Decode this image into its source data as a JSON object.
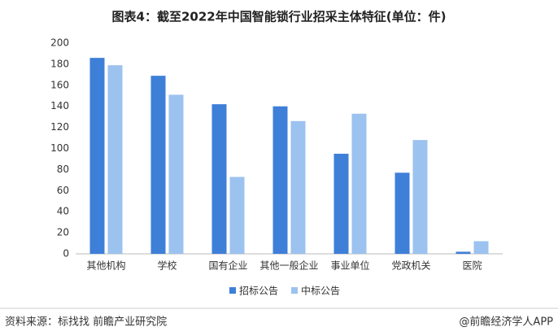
{
  "chart_data": {
    "type": "bar",
    "title": "图表4：截至2022年中国智能锁行业招采主体特征(单位：件)",
    "categories": [
      "其他机构",
      "学校",
      "国有企业",
      "其他一般企业",
      "事业单位",
      "党政机关",
      "医院"
    ],
    "series": [
      {
        "name": "招标公告",
        "color": "#3e7fd8",
        "values": [
          186,
          169,
          142,
          140,
          95,
          77,
          2
        ]
      },
      {
        "name": "中标公告",
        "color": "#9cc2ef",
        "values": [
          179,
          151,
          73,
          126,
          133,
          108,
          12
        ]
      }
    ],
    "ylim": [
      0,
      200
    ],
    "yticks": [
      0,
      20,
      40,
      60,
      80,
      100,
      120,
      140,
      160,
      180,
      200
    ],
    "grid": false,
    "legend": "bottom",
    "source": "资料来源：标找找 前瞻产业研究院",
    "credit": "@前瞻经济学人APP"
  }
}
